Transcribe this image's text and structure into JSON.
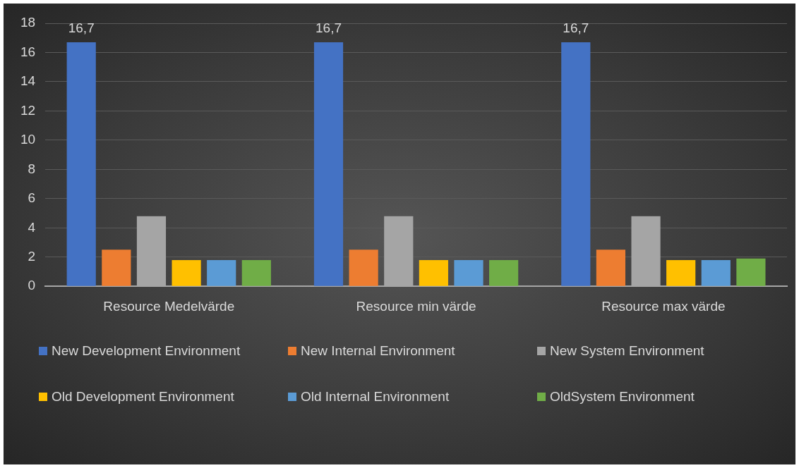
{
  "chart_data": {
    "type": "bar",
    "categories": [
      "Resource Medelvärde",
      "Resource min värde",
      "Resource max värde"
    ],
    "series": [
      {
        "name": "New Development Environment",
        "color": "#4472c4",
        "values": [
          16.7,
          16.7,
          16.7
        ],
        "value_labels": [
          "16,7",
          "16,7",
          "16,7"
        ]
      },
      {
        "name": "New Internal Environment",
        "color": "#ed7d31",
        "values": [
          2.5,
          2.5,
          2.5
        ]
      },
      {
        "name": "New System Environment",
        "color": "#a5a5a5",
        "values": [
          4.8,
          4.8,
          4.8
        ]
      },
      {
        "name": "Old Development Environment",
        "color": "#ffc000",
        "values": [
          1.8,
          1.8,
          1.8
        ]
      },
      {
        "name": "Old Internal Environment",
        "color": "#5b9bd5",
        "values": [
          1.8,
          1.8,
          1.8
        ]
      },
      {
        "name": "OldSystem Environment",
        "color": "#70ad47",
        "values": [
          1.8,
          1.8,
          1.9
        ]
      }
    ],
    "ylim": [
      0,
      18
    ],
    "yticks": [
      0,
      2,
      4,
      6,
      8,
      10,
      12,
      14,
      16,
      18
    ],
    "grid": "y",
    "legend": "bottom"
  }
}
